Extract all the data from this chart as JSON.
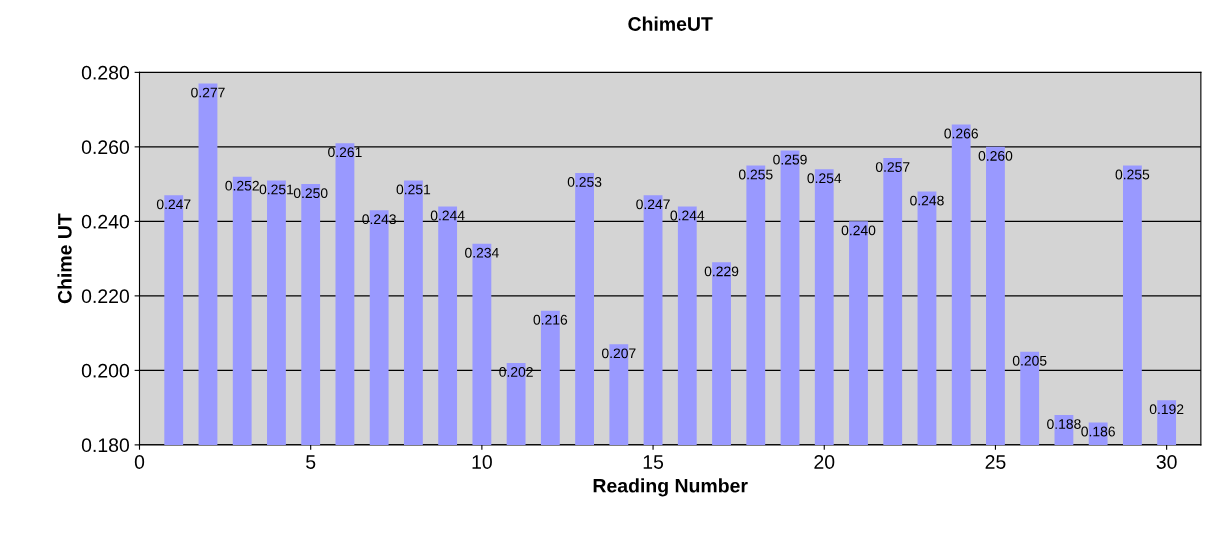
{
  "chart_data": {
    "type": "bar",
    "title": "ChimeUT",
    "xlabel": "Reading Number",
    "ylabel": "Chime UT",
    "x": [
      1,
      2,
      3,
      4,
      5,
      6,
      7,
      8,
      9,
      10,
      11,
      12,
      13,
      14,
      15,
      16,
      17,
      18,
      19,
      20,
      21,
      22,
      23,
      24,
      25,
      26,
      27,
      28,
      29,
      30
    ],
    "values": [
      0.247,
      0.277,
      0.252,
      0.251,
      0.25,
      0.261,
      0.243,
      0.251,
      0.244,
      0.234,
      0.202,
      0.216,
      0.253,
      0.207,
      0.247,
      0.244,
      0.229,
      0.255,
      0.259,
      0.254,
      0.24,
      0.257,
      0.248,
      0.266,
      0.26,
      0.205,
      0.188,
      0.186,
      0.255,
      0.192
    ],
    "value_labels": [
      "0.247",
      "0.277",
      "0.252",
      "0.251",
      "0.250",
      "0.261",
      "0.243",
      "0.251",
      "0.244",
      "0.234",
      "0.202",
      "0.216",
      "0.253",
      "0.207",
      "0.247",
      "0.244",
      "0.229",
      "0.255",
      "0.259",
      "0.254",
      "0.240",
      "0.257",
      "0.248",
      "0.266",
      "0.260",
      "0.205",
      "0.188",
      "0.186",
      "0.255",
      "0.192"
    ],
    "color": "#9999ff",
    "xlim": [
      0,
      31
    ],
    "xticks": [
      0,
      5,
      10,
      15,
      20,
      25,
      30
    ],
    "ylim": [
      0.18,
      0.28
    ],
    "yticks": [
      {
        "value": 0.18,
        "label": "0.180"
      },
      {
        "value": 0.2,
        "label": "0.200"
      },
      {
        "value": 0.22,
        "label": "0.220"
      },
      {
        "value": 0.24,
        "label": "0.240"
      },
      {
        "value": 0.26,
        "label": "0.260"
      },
      {
        "value": 0.28,
        "label": "0.280"
      }
    ],
    "grid": "y",
    "legend": false
  }
}
